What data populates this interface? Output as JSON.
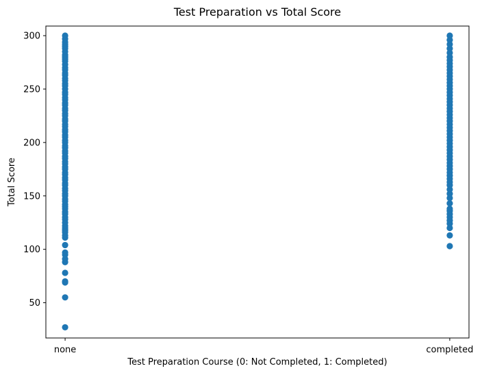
{
  "chart_data": {
    "type": "scatter",
    "title": "Test Preparation vs Total Score",
    "xlabel": "Test Preparation Course (0: Not Completed, 1: Completed)",
    "ylabel": "Total Score",
    "categories": [
      "none",
      "completed"
    ],
    "xlim": [
      -0.05,
      1.05
    ],
    "ylim": [
      17,
      309
    ],
    "yticks": [
      50,
      100,
      150,
      200,
      250,
      300
    ],
    "grid": false,
    "marker_color": "#1f77b4",
    "series": [
      {
        "name": "none",
        "x": 0,
        "values": [
          27,
          55,
          69,
          70,
          78,
          88,
          91,
          95,
          97,
          104,
          111,
          113,
          116,
          118,
          120,
          122,
          125,
          128,
          130,
          133,
          135,
          138,
          140,
          142,
          145,
          147,
          150,
          152,
          155,
          157,
          160,
          162,
          165,
          167,
          170,
          172,
          175,
          177,
          180,
          182,
          185,
          187,
          190,
          192,
          195,
          197,
          200,
          202,
          205,
          207,
          210,
          212,
          215,
          217,
          220,
          222,
          225,
          227,
          230,
          232,
          235,
          237,
          240,
          242,
          245,
          247,
          250,
          253,
          255,
          258,
          260,
          263,
          265,
          268,
          270,
          273,
          276,
          278,
          280,
          282,
          285,
          288,
          290,
          292,
          294,
          297,
          300
        ]
      },
      {
        "name": "completed",
        "x": 1,
        "values": [
          103,
          113,
          120,
          124,
          127,
          130,
          133,
          136,
          138,
          143,
          148,
          152,
          156,
          160,
          163,
          166,
          169,
          172,
          175,
          178,
          181,
          184,
          187,
          190,
          193,
          196,
          199,
          202,
          205,
          208,
          211,
          214,
          217,
          220,
          223,
          226,
          229,
          232,
          235,
          238,
          241,
          244,
          247,
          250,
          253,
          256,
          259,
          262,
          265,
          268,
          271,
          274,
          277,
          280,
          284,
          288,
          292,
          296,
          300
        ]
      }
    ]
  }
}
